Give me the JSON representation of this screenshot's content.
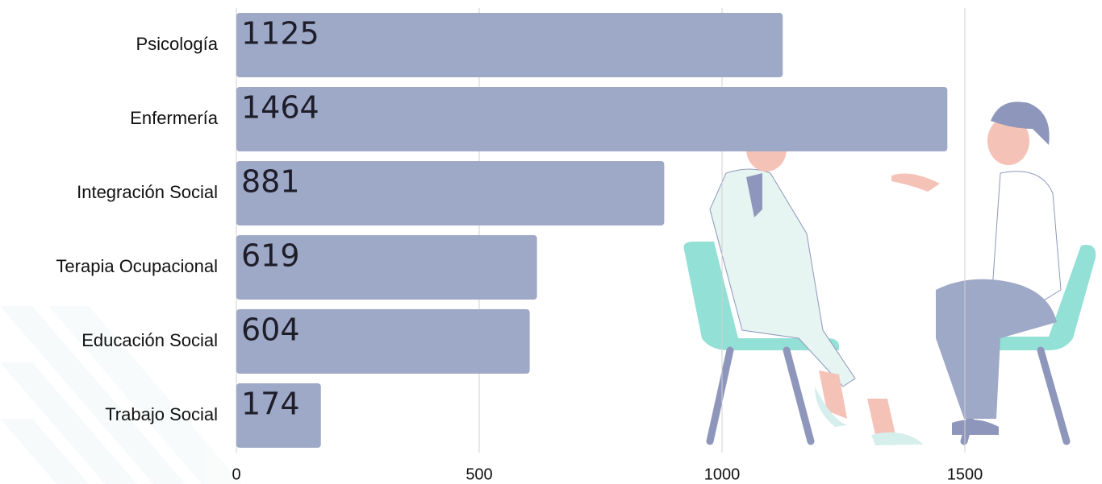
{
  "chart_data": {
    "type": "bar",
    "orientation": "horizontal",
    "categories": [
      "Psicología",
      "Enfermería",
      "Integración Social",
      "Terapia Ocupacional",
      "Educación Social",
      "Trabajo Social"
    ],
    "values": [
      1125,
      1464,
      881,
      619,
      604,
      174
    ],
    "color": "#9ea8c7",
    "xlim": [
      0,
      1750
    ],
    "xticks": [
      0,
      500,
      1000,
      1500
    ],
    "grid": true
  }
}
